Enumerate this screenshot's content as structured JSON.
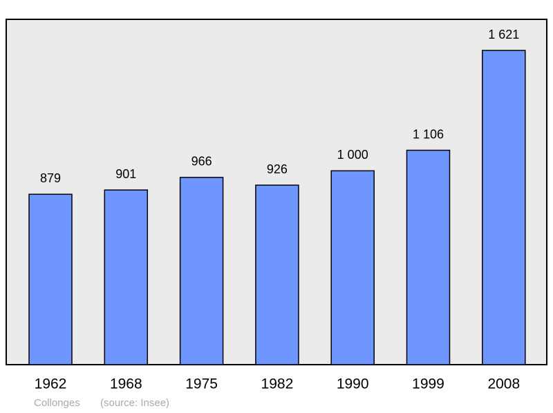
{
  "chart_data": {
    "type": "bar",
    "categories": [
      "1962",
      "1968",
      "1975",
      "1982",
      "1990",
      "1999",
      "2008"
    ],
    "values": [
      879,
      901,
      966,
      926,
      1000,
      1106,
      1621
    ],
    "value_labels": [
      "879",
      "901",
      "966",
      "926",
      "1 000",
      "1 106",
      "1 621"
    ],
    "color": "#6f96ff",
    "place": "Collonges",
    "source": "(source: Insee)"
  }
}
